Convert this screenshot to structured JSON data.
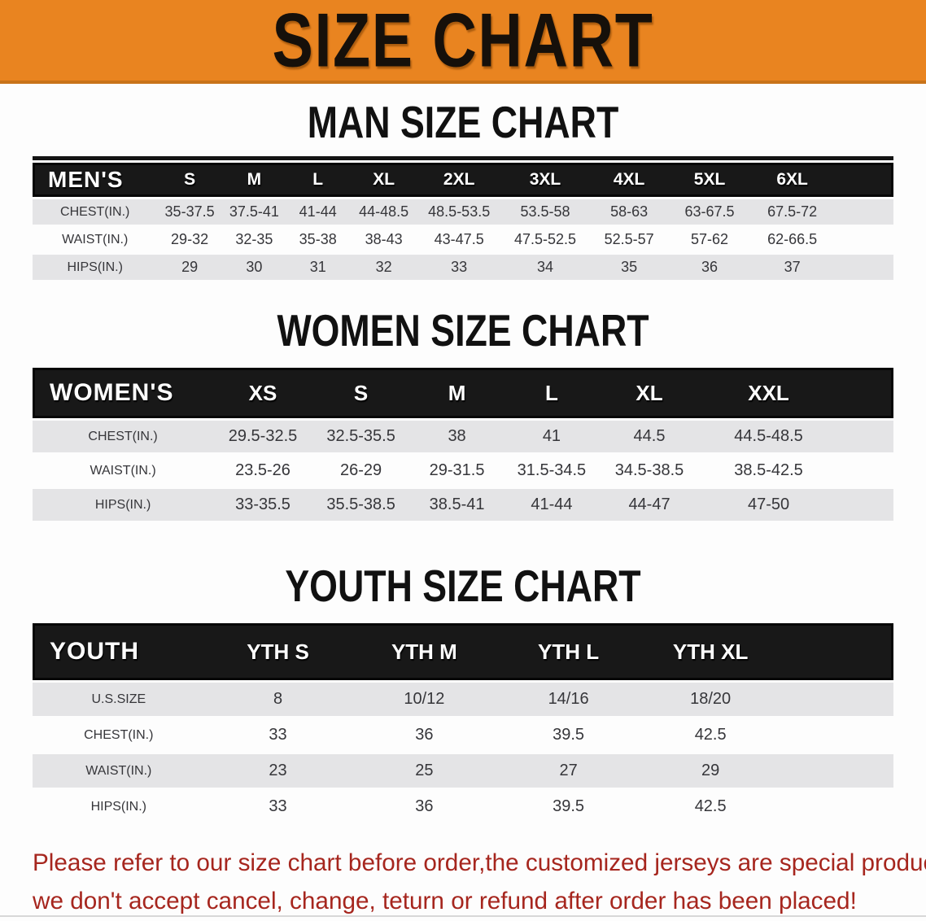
{
  "colors": {
    "banner-bg": "#E98420",
    "banner-edge": "#C8731A",
    "bar": "#181818",
    "bar-border": "#060606",
    "stripe": "#E4E4E6",
    "body-text": "#36363A",
    "footer-red": "#A6261E"
  },
  "banner": {
    "title": "SIZE CHART"
  },
  "sections": [
    {
      "id": "men",
      "heading": "MAN SIZE CHART",
      "table": {
        "header": [
          "MEN'S",
          "S",
          "M",
          "L",
          "XL",
          "2XL",
          "3XL",
          "4XL",
          "5XL",
          "6XL"
        ],
        "rows": [
          [
            "CHEST(IN.)",
            "35-37.5",
            "37.5-41",
            "41-44",
            "44-48.5",
            "48.5-53.5",
            "53.5-58",
            "58-63",
            "63-67.5",
            "67.5-72"
          ],
          [
            "WAIST(IN.)",
            "29-32",
            "32-35",
            "35-38",
            "38-43",
            "43-47.5",
            "47.5-52.5",
            "52.5-57",
            "57-62",
            "62-66.5"
          ],
          [
            "HIPS(IN.)",
            "29",
            "30",
            "31",
            "32",
            "33",
            "34",
            "35",
            "36",
            "37"
          ]
        ]
      }
    },
    {
      "id": "women",
      "heading": "WOMEN SIZE CHART",
      "table": {
        "header": [
          "WOMEN'S",
          "XS",
          "S",
          "M",
          "L",
          "XL",
          "XXL"
        ],
        "rows": [
          [
            "CHEST(IN.)",
            "29.5-32.5",
            "32.5-35.5",
            "38",
            "41",
            "44.5",
            "44.5-48.5"
          ],
          [
            "WAIST(IN.)",
            "23.5-26",
            "26-29",
            "29-31.5",
            "31.5-34.5",
            "34.5-38.5",
            "38.5-42.5"
          ],
          [
            "HIPS(IN.)",
            "33-35.5",
            "35.5-38.5",
            "38.5-41",
            "41-44",
            "44-47",
            "47-50"
          ]
        ]
      }
    },
    {
      "id": "youth",
      "heading": "YOUTH SIZE CHART",
      "table": {
        "header": [
          "YOUTH",
          "YTH S",
          "YTH M",
          "YTH L",
          "YTH XL"
        ],
        "rows": [
          [
            "U.S.SIZE",
            "8",
            "10/12",
            "14/16",
            "18/20"
          ],
          [
            "CHEST(IN.)",
            "33",
            "36",
            "39.5",
            "42.5"
          ],
          [
            "WAIST(IN.)",
            "23",
            "25",
            "27",
            "29"
          ],
          [
            "HIPS(IN.)",
            "33",
            "36",
            "39.5",
            "42.5"
          ]
        ]
      }
    }
  ],
  "footer": {
    "line1": "Please refer to our size chart before order,the customized jerseys are special products,",
    "line2": "we don't accept cancel, change, teturn or refund after order has been placed!"
  }
}
